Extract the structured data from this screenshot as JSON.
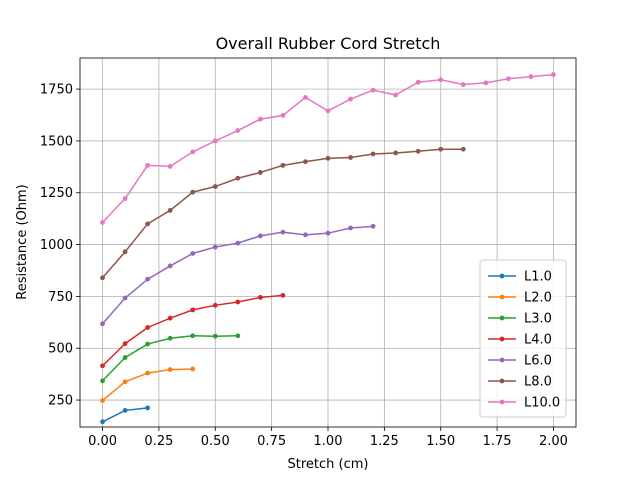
{
  "chart_data": {
    "type": "line",
    "title": "Overall Rubber Cord Stretch",
    "xlabel": "Stretch (cm)",
    "ylabel": "Resistance (Ohm)",
    "xlim": [
      -0.1,
      2.1
    ],
    "ylim": [
      120,
      1900
    ],
    "xticks": [
      0.0,
      0.25,
      0.5,
      0.75,
      1.0,
      1.25,
      1.5,
      1.75,
      2.0
    ],
    "xtick_labels": [
      "0.00",
      "0.25",
      "0.50",
      "0.75",
      "1.00",
      "1.25",
      "1.50",
      "1.75",
      "2.00"
    ],
    "yticks": [
      250,
      500,
      750,
      1000,
      1250,
      1500,
      1750
    ],
    "ytick_labels": [
      "250",
      "500",
      "750",
      "1000",
      "1250",
      "1500",
      "1750"
    ],
    "grid": true,
    "legend_position": "lower-right",
    "series": [
      {
        "name": "L1.0",
        "color": "#1f77b4",
        "x": [
          0.0,
          0.1,
          0.2
        ],
        "y": [
          145,
          200,
          212
        ]
      },
      {
        "name": "L2.0",
        "color": "#ff7f0e",
        "x": [
          0.0,
          0.1,
          0.2,
          0.3,
          0.4
        ],
        "y": [
          248,
          338,
          380,
          397,
          400
        ]
      },
      {
        "name": "L3.0",
        "color": "#2ca02c",
        "x": [
          0.0,
          0.1,
          0.2,
          0.3,
          0.4,
          0.5,
          0.6
        ],
        "y": [
          343,
          455,
          520,
          548,
          560,
          558,
          560
        ]
      },
      {
        "name": "L4.0",
        "color": "#d62728",
        "x": [
          0.0,
          0.1,
          0.2,
          0.3,
          0.4,
          0.5,
          0.6,
          0.7,
          0.8
        ],
        "y": [
          415,
          522,
          600,
          645,
          685,
          707,
          723,
          745,
          755
        ]
      },
      {
        "name": "L6.0",
        "color": "#9467bd",
        "x": [
          0.0,
          0.1,
          0.2,
          0.3,
          0.4,
          0.5,
          0.6,
          0.7,
          0.8,
          0.9,
          1.0,
          1.1,
          1.2
        ],
        "y": [
          618,
          742,
          833,
          897,
          957,
          988,
          1007,
          1042,
          1060,
          1047,
          1055,
          1080,
          1088
        ]
      },
      {
        "name": "L8.0",
        "color": "#8c564b",
        "x": [
          0.0,
          0.1,
          0.2,
          0.3,
          0.4,
          0.5,
          0.6,
          0.7,
          0.8,
          0.9,
          1.0,
          1.1,
          1.2,
          1.3,
          1.4,
          1.5,
          1.6
        ],
        "y": [
          840,
          965,
          1100,
          1165,
          1253,
          1280,
          1320,
          1348,
          1382,
          1400,
          1416,
          1420,
          1437,
          1442,
          1450,
          1460,
          1460
        ]
      },
      {
        "name": "L10.0",
        "color": "#e377c2",
        "x": [
          0.0,
          0.1,
          0.2,
          0.3,
          0.4,
          0.5,
          0.6,
          0.7,
          0.8,
          0.9,
          1.0,
          1.1,
          1.2,
          1.3,
          1.4,
          1.5,
          1.6,
          1.7,
          1.8,
          1.9,
          2.0
        ],
        "y": [
          1107,
          1222,
          1382,
          1377,
          1447,
          1500,
          1550,
          1605,
          1623,
          1710,
          1645,
          1702,
          1745,
          1722,
          1783,
          1795,
          1772,
          1780,
          1800,
          1810,
          1820
        ]
      }
    ]
  }
}
